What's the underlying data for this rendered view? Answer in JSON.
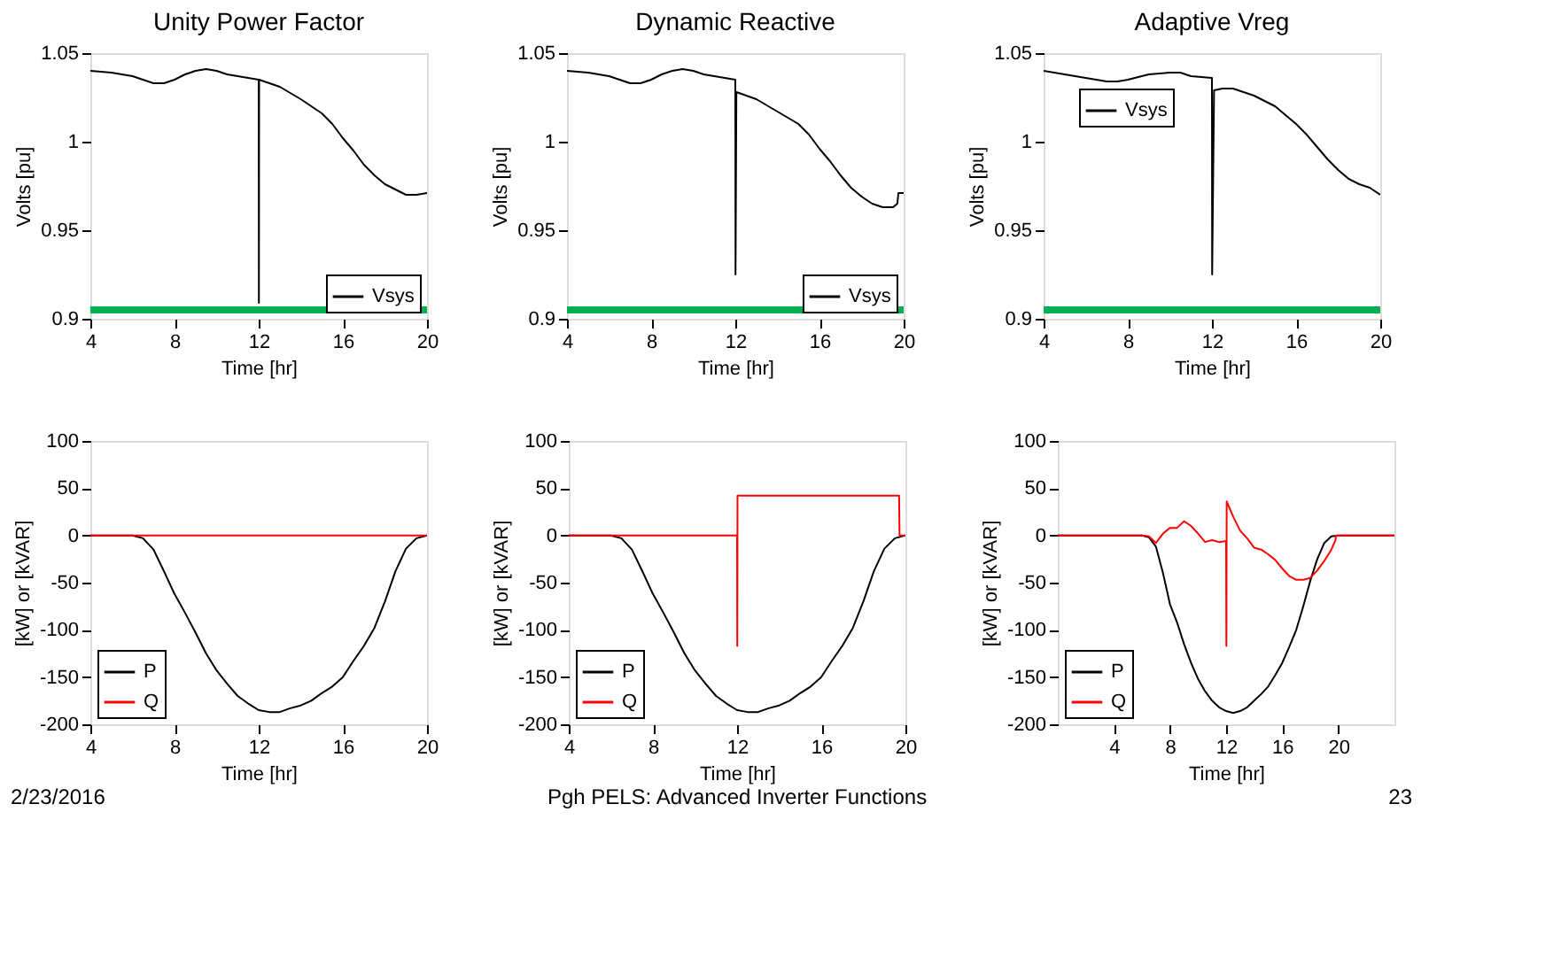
{
  "chart_data": [
    {
      "type": "line",
      "title": "Unity Power Factor",
      "xlabel": "Time [hr]",
      "ylabel": "Volts [pu]",
      "xlim": [
        4,
        20
      ],
      "xticks": [
        4,
        8,
        12,
        16,
        20
      ],
      "ylim": [
        0.9,
        1.05
      ],
      "yticks": [
        0.9,
        0.95,
        1,
        1.05
      ],
      "grid": false,
      "legend": "bottom right",
      "series": [
        {
          "name": "Vsys",
          "color": "#000000",
          "x": [
            4,
            5,
            6,
            7,
            7.5,
            8,
            8.5,
            9,
            9.5,
            10,
            10.5,
            11,
            11.5,
            12,
            12.01,
            12.02,
            13,
            14,
            15,
            15.5,
            16,
            16.5,
            17,
            17.5,
            18,
            18.5,
            19,
            19.5,
            20
          ],
          "values": [
            1.04,
            1.039,
            1.037,
            1.033,
            1.033,
            1.035,
            1.038,
            1.04,
            1.041,
            1.04,
            1.038,
            1.037,
            1.036,
            1.035,
            0.909,
            1.035,
            1.031,
            1.024,
            1.016,
            1.01,
            1.002,
            0.995,
            0.987,
            0.981,
            0.976,
            0.973,
            0.97,
            0.97,
            0.971
          ]
        }
      ],
      "ref_lines": [
        {
          "axis": "y",
          "value": 0.905,
          "color": "#00b050"
        }
      ]
    },
    {
      "type": "line",
      "title": "Dynamic Reactive",
      "xlabel": "Time [hr]",
      "ylabel": "Volts [pu]",
      "xlim": [
        4,
        20
      ],
      "xticks": [
        4,
        8,
        12,
        16,
        20
      ],
      "ylim": [
        0.9,
        1.05
      ],
      "yticks": [
        0.9,
        0.95,
        1,
        1.05
      ],
      "grid": false,
      "legend": "bottom right",
      "series": [
        {
          "name": "Vsys",
          "color": "#000000",
          "x": [
            4,
            5,
            6,
            7,
            7.5,
            8,
            8.5,
            9,
            9.5,
            10,
            10.5,
            11,
            11.5,
            12,
            12.01,
            12.05,
            13,
            14,
            15,
            15.5,
            16,
            16.5,
            17,
            17.5,
            18,
            18.5,
            19,
            19.5,
            19.7,
            19.75,
            20
          ],
          "values": [
            1.04,
            1.039,
            1.037,
            1.033,
            1.033,
            1.035,
            1.038,
            1.04,
            1.041,
            1.04,
            1.038,
            1.037,
            1.036,
            1.035,
            0.925,
            1.028,
            1.024,
            1.017,
            1.01,
            1.004,
            0.996,
            0.989,
            0.981,
            0.974,
            0.969,
            0.965,
            0.963,
            0.963,
            0.965,
            0.971,
            0.971
          ]
        }
      ],
      "ref_lines": [
        {
          "axis": "y",
          "value": 0.905,
          "color": "#00b050"
        }
      ]
    },
    {
      "type": "line",
      "title": "Adaptive Vreg",
      "xlabel": "Time [hr]",
      "ylabel": "Volts [pu]",
      "xlim": [
        4,
        20
      ],
      "xticks": [
        4,
        8,
        12,
        16,
        20
      ],
      "ylim": [
        0.9,
        1.05
      ],
      "yticks": [
        0.9,
        0.95,
        1,
        1.05
      ],
      "grid": false,
      "legend": "top left",
      "series": [
        {
          "name": "Vsys",
          "color": "#000000",
          "x": [
            4,
            5,
            6,
            7,
            7.5,
            8,
            9,
            10,
            10.5,
            11,
            12,
            12.01,
            12.1,
            12.5,
            13,
            14,
            15,
            16,
            16.5,
            17,
            17.5,
            18,
            18.5,
            19,
            19.5,
            20
          ],
          "values": [
            1.04,
            1.038,
            1.036,
            1.034,
            1.034,
            1.035,
            1.038,
            1.039,
            1.039,
            1.037,
            1.036,
            0.925,
            1.029,
            1.03,
            1.03,
            1.026,
            1.02,
            1.01,
            1.004,
            0.997,
            0.99,
            0.984,
            0.979,
            0.976,
            0.974,
            0.97
          ]
        }
      ],
      "ref_lines": [
        {
          "axis": "y",
          "value": 0.905,
          "color": "#00b050"
        }
      ]
    },
    {
      "type": "line",
      "xlabel": "Time [hr]",
      "ylabel": "[kW] or [kVAR]",
      "xlim": [
        4,
        20
      ],
      "xticks": [
        4,
        8,
        12,
        16,
        20
      ],
      "ylim": [
        -200,
        100
      ],
      "yticks": [
        -200,
        -150,
        -100,
        -50,
        0,
        50,
        100
      ],
      "grid": false,
      "legend": "bottom left",
      "series": [
        {
          "name": "P",
          "color": "#000000",
          "x": [
            4,
            6,
            6.5,
            7,
            7.5,
            8,
            8.5,
            9,
            9.5,
            10,
            10.5,
            11,
            11.5,
            12,
            12.5,
            13,
            13.5,
            14,
            14.5,
            15,
            15.5,
            16,
            16.5,
            17,
            17.5,
            18,
            18.5,
            19,
            19.5,
            20
          ],
          "values": [
            0,
            0,
            -3,
            -15,
            -38,
            -62,
            -82,
            -103,
            -125,
            -143,
            -157,
            -170,
            -178,
            -185,
            -187,
            -187,
            -183,
            -180,
            -175,
            -167,
            -160,
            -150,
            -133,
            -117,
            -98,
            -70,
            -38,
            -14,
            -3,
            0
          ]
        },
        {
          "name": "Q",
          "color": "#ff0000",
          "x": [
            4,
            20
          ],
          "values": [
            0,
            0
          ]
        }
      ],
      "annotations": [
        "2/23/2016"
      ]
    },
    {
      "type": "line",
      "xlabel": "Time [hr]",
      "ylabel": "[kW] or [kVAR]",
      "xlim": [
        4,
        20
      ],
      "xticks": [
        4,
        8,
        12,
        16,
        20
      ],
      "ylim": [
        -200,
        100
      ],
      "yticks": [
        -200,
        -150,
        -100,
        -50,
        0,
        50,
        100
      ],
      "grid": false,
      "legend": "bottom left",
      "series": [
        {
          "name": "P",
          "color": "#000000",
          "x": [
            4,
            6,
            6.5,
            7,
            7.5,
            8,
            8.5,
            9,
            9.5,
            10,
            10.5,
            11,
            11.5,
            12,
            12.5,
            13,
            13.5,
            14,
            14.5,
            15,
            15.5,
            16,
            16.5,
            17,
            17.5,
            18,
            18.5,
            19,
            19.5,
            20
          ],
          "values": [
            0,
            0,
            -3,
            -15,
            -38,
            -62,
            -82,
            -103,
            -125,
            -143,
            -157,
            -170,
            -178,
            -185,
            -187,
            -187,
            -183,
            -180,
            -175,
            -167,
            -160,
            -150,
            -133,
            -117,
            -98,
            -70,
            -38,
            -14,
            -3,
            0
          ]
        },
        {
          "name": "Q",
          "color": "#ff0000",
          "x": [
            4,
            12,
            12.01,
            12.02,
            19.7,
            19.72,
            20
          ],
          "values": [
            0,
            0,
            -117,
            42,
            42,
            0,
            0
          ]
        }
      ],
      "annotations": [
        "Pgh PELS: Advanced Inverter Functions"
      ]
    },
    {
      "type": "line",
      "xlabel": "Time [hr]",
      "ylabel": "[kW] or [kVAR]",
      "xlim": [
        0,
        24
      ],
      "xticks": [
        4,
        8,
        12,
        16,
        20
      ],
      "ylim": [
        -200,
        100
      ],
      "yticks": [
        -200,
        -150,
        -100,
        -50,
        0,
        50,
        100
      ],
      "grid": false,
      "legend": "bottom left",
      "series": [
        {
          "name": "P",
          "color": "#000000",
          "x": [
            0,
            6,
            6.5,
            7,
            7.5,
            8,
            8.5,
            9,
            9.5,
            10,
            10.5,
            11,
            11.5,
            12,
            12.5,
            13,
            13.5,
            14,
            14.5,
            15,
            15.5,
            16,
            16.5,
            17,
            17.5,
            18,
            18.5,
            19,
            19.5,
            20,
            24
          ],
          "values": [
            0,
            0,
            -2,
            -12,
            -40,
            -73,
            -92,
            -115,
            -135,
            -152,
            -165,
            -175,
            -182,
            -186,
            -188,
            -186,
            -182,
            -175,
            -168,
            -160,
            -148,
            -135,
            -118,
            -100,
            -75,
            -48,
            -25,
            -8,
            -1,
            0,
            0
          ]
        },
        {
          "name": "Q",
          "color": "#ff0000",
          "x": [
            0,
            6,
            6.5,
            7,
            7.5,
            8,
            8.5,
            9,
            9.5,
            10,
            10.5,
            11,
            11.5,
            12,
            12.02,
            12.04,
            12.5,
            13,
            13.5,
            14,
            14.5,
            15,
            15.5,
            16,
            16.5,
            17,
            17.5,
            18,
            18.5,
            19,
            19.5,
            19.8,
            19.82,
            24
          ],
          "values": [
            0,
            0,
            -1,
            -8,
            2,
            8,
            8,
            15,
            10,
            2,
            -7,
            -5,
            -7,
            -6,
            -117,
            36,
            20,
            5,
            -3,
            -13,
            -15,
            -20,
            -26,
            -35,
            -43,
            -47,
            -47,
            -45,
            -37,
            -27,
            -15,
            -5,
            0,
            0
          ]
        }
      ],
      "annotations": [
        "23"
      ]
    }
  ]
}
